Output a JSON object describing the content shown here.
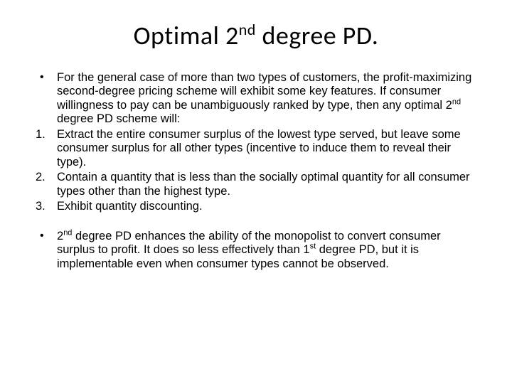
{
  "title": {
    "pre": "Optimal 2",
    "sup": "nd",
    "post": " degree PD."
  },
  "items": [
    {
      "kind": "bullet",
      "segments": [
        {
          "t": "text",
          "v": "For the general case of more than two types of customers, the profit-maximizing second-degree pricing scheme will exhibit some key features.  If consumer willingness to pay can be unambiguously ranked by type, then any optimal 2"
        },
        {
          "t": "sup",
          "v": "nd"
        },
        {
          "t": "text",
          "v": " degree PD scheme will:"
        }
      ]
    },
    {
      "kind": "num",
      "marker": "1.",
      "segments": [
        {
          "t": "text",
          "v": "Extract the entire consumer surplus of the lowest type served, but leave some consumer surplus for all other types (incentive to induce them to reveal their type)."
        }
      ]
    },
    {
      "kind": "num",
      "marker": "2.",
      "segments": [
        {
          "t": "text",
          "v": "Contain a quantity that is less than the socially optimal quantity for all consumer types other than the highest type."
        }
      ]
    },
    {
      "kind": "num",
      "marker": "3.",
      "segments": [
        {
          "t": "text",
          "v": "Exhibit quantity discounting."
        }
      ]
    }
  ],
  "items2": [
    {
      "kind": "bullet",
      "segments": [
        {
          "t": "text",
          "v": "2"
        },
        {
          "t": "sup",
          "v": "nd"
        },
        {
          "t": "text",
          "v": " degree PD enhances the ability of the monopolist to convert consumer surplus to profit.  It does so less effectively than 1"
        },
        {
          "t": "sup",
          "v": "st"
        },
        {
          "t": "text",
          "v": " degree PD, but it is implementable even when consumer types cannot be observed."
        }
      ]
    }
  ],
  "style": {
    "background_color": "#ffffff",
    "text_color": "#000000",
    "title_fontsize": 36,
    "body_fontsize": 16.5,
    "body_font": "Arial",
    "title_font": "Calibri"
  }
}
